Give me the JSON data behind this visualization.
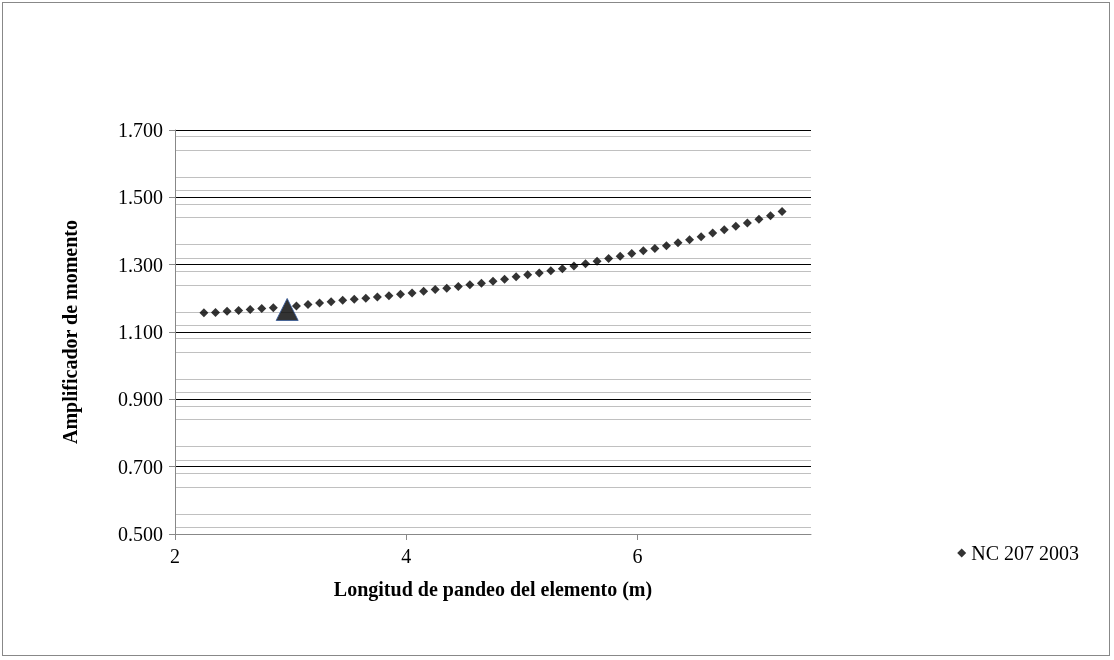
{
  "chart_data": {
    "type": "scatter",
    "xlabel": "Longitud de pandeo del elemento (m)",
    "ylabel": "Amplificador de momento",
    "xlim": [
      2,
      7.5
    ],
    "xticks": [
      2,
      4,
      6
    ],
    "ylim": [
      0.5,
      1.7
    ],
    "yticks": [
      {
        "value": 0.5,
        "label": "0.500"
      },
      {
        "value": 0.7,
        "label": "0.700"
      },
      {
        "value": 0.9,
        "label": "0.900"
      },
      {
        "value": 1.1,
        "label": "1.100"
      },
      {
        "value": 1.3,
        "label": "1.300"
      },
      {
        "value": 1.5,
        "label": "1.500"
      },
      {
        "value": 1.7,
        "label": "1.700"
      }
    ],
    "grid": "y",
    "legend": "bottom right",
    "series": [
      {
        "name": "NC 207 2003",
        "color": "#000000",
        "marker": "diamond",
        "x": [
          2.25,
          2.35,
          2.45,
          2.55,
          2.65,
          2.75,
          2.85,
          2.95,
          3.05,
          3.15,
          3.25,
          3.35,
          3.45,
          3.55,
          3.65,
          3.75,
          3.85,
          3.95,
          4.05,
          4.15,
          4.25,
          4.35,
          4.45,
          4.55,
          4.65,
          4.75,
          4.85,
          4.95,
          5.05,
          5.15,
          5.25,
          5.35,
          5.45,
          5.55,
          5.65,
          5.75,
          5.85,
          5.95,
          6.05,
          6.15,
          6.25,
          6.35,
          6.45,
          6.55,
          6.65,
          6.75,
          6.85,
          6.95,
          7.05,
          7.15,
          7.25
        ],
        "values": [
          1.157,
          1.158,
          1.162,
          1.164,
          1.167,
          1.17,
          1.172,
          null,
          1.177,
          1.182,
          1.186,
          1.19,
          1.194,
          1.197,
          1.2,
          1.204,
          1.208,
          1.212,
          1.216,
          1.221,
          1.226,
          1.23,
          1.235,
          1.24,
          1.245,
          1.251,
          1.257,
          1.264,
          1.27,
          1.275,
          1.282,
          1.288,
          1.296,
          1.303,
          1.31,
          1.318,
          1.325,
          1.333,
          1.341,
          1.348,
          1.356,
          1.365,
          1.374,
          1.383,
          1.394,
          1.404,
          1.414,
          1.424,
          1.435,
          1.445,
          1.458
        ]
      },
      {
        "color": "#000000",
        "marker": "triangle",
        "x": [
          2.97
        ],
        "values": [
          1.167
        ]
      }
    ]
  }
}
